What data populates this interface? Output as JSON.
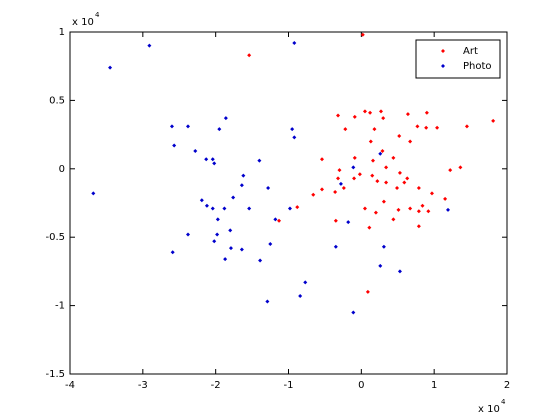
{
  "chart_data": {
    "type": "scatter",
    "x_exponent_base": "x 10",
    "x_exponent": "4",
    "y_exponent_base": "x 10",
    "y_exponent": "4",
    "xlim": [
      -4,
      2
    ],
    "xticks": [
      -4,
      -3,
      -2,
      -1,
      0,
      1,
      2
    ],
    "ylim": [
      -1.5,
      1
    ],
    "yticks": [
      -1.5,
      -1,
      -0.5,
      0,
      0.5,
      1
    ],
    "grid": false,
    "legend_position": "upper-right",
    "series": [
      {
        "name": "Art",
        "color": "#ff0000",
        "x": [
          0.02,
          -1.54,
          0.9,
          0.27,
          0.05,
          0.12,
          -0.32,
          -0.09,
          0.3,
          0.64,
          0.77,
          0.89,
          1.04,
          1.45,
          1.81,
          -0.22,
          0.18,
          0.52,
          0.67,
          0.13,
          0.29,
          -0.54,
          -0.09,
          0.44,
          0.16,
          0.34,
          1.22,
          1.36,
          -0.3,
          -0.02,
          0.15,
          0.53,
          -0.32,
          -0.1,
          0.63,
          0.22,
          0.34,
          0.59,
          0.49,
          -0.24,
          -0.36,
          -0.54,
          0.79,
          0.97,
          1.15,
          0.31,
          -0.66,
          0.67,
          0.2,
          0.79,
          0.84,
          0.92,
          0.51,
          0.05,
          -0.88,
          -0.35,
          0.44,
          0.79,
          0.11,
          -1.13,
          0.09
        ],
        "values": [
          0.98,
          0.83,
          0.41,
          0.42,
          0.42,
          0.41,
          0.39,
          0.38,
          0.37,
          0.4,
          0.31,
          0.3,
          0.3,
          0.31,
          0.35,
          0.29,
          0.29,
          0.24,
          0.2,
          0.2,
          0.13,
          0.07,
          0.08,
          0.08,
          0.06,
          0.01,
          -0.01,
          0.01,
          -0.01,
          -0.04,
          -0.05,
          -0.03,
          -0.07,
          -0.07,
          -0.07,
          -0.09,
          -0.1,
          -0.1,
          -0.14,
          -0.14,
          -0.17,
          -0.15,
          -0.14,
          -0.18,
          -0.22,
          -0.24,
          -0.19,
          -0.29,
          -0.32,
          -0.31,
          -0.27,
          -0.31,
          -0.3,
          -0.29,
          -0.28,
          -0.38,
          -0.37,
          -0.42,
          -0.43,
          -0.38,
          -0.9
        ]
      },
      {
        "name": "Photo",
        "color": "#0000cc",
        "x": [
          -3.45,
          -2.91,
          -0.92,
          -3.68,
          -2.6,
          -2.38,
          -1.86,
          -1.95,
          -2.57,
          -2.28,
          -1.4,
          -0.95,
          -0.92,
          -2.13,
          -2.04,
          -2.02,
          -1.62,
          -1.64,
          -1.28,
          -2.19,
          -2.12,
          -2.04,
          -1.97,
          -1.54,
          -1.76,
          -1.88,
          -0.98,
          -1.18,
          -1.8,
          -1.98,
          -1.79,
          -2.38,
          -2.02,
          -2.59,
          -1.39,
          -1.64,
          -1.87,
          -1.25,
          -1.29,
          -0.77,
          -0.84,
          -0.11,
          -0.35,
          -0.18,
          -0.11,
          -0.28,
          0.26,
          1.19,
          0.31,
          0.26,
          0.53
        ],
        "values": [
          0.74,
          0.9,
          0.92,
          -0.18,
          0.31,
          0.31,
          0.37,
          0.29,
          0.17,
          0.13,
          0.06,
          0.29,
          0.23,
          0.07,
          0.07,
          0.04,
          -0.05,
          -0.12,
          -0.14,
          -0.23,
          -0.27,
          -0.29,
          -0.37,
          -0.29,
          -0.21,
          -0.29,
          -0.29,
          -0.37,
          -0.45,
          -0.48,
          -0.58,
          -0.48,
          -0.53,
          -0.61,
          -0.67,
          -0.59,
          -0.66,
          -0.55,
          -0.97,
          -0.83,
          -0.93,
          -1.05,
          -0.57,
          -0.39,
          0.01,
          -0.11,
          0.11,
          -0.3,
          -0.57,
          -0.71,
          -0.75
        ]
      }
    ]
  }
}
